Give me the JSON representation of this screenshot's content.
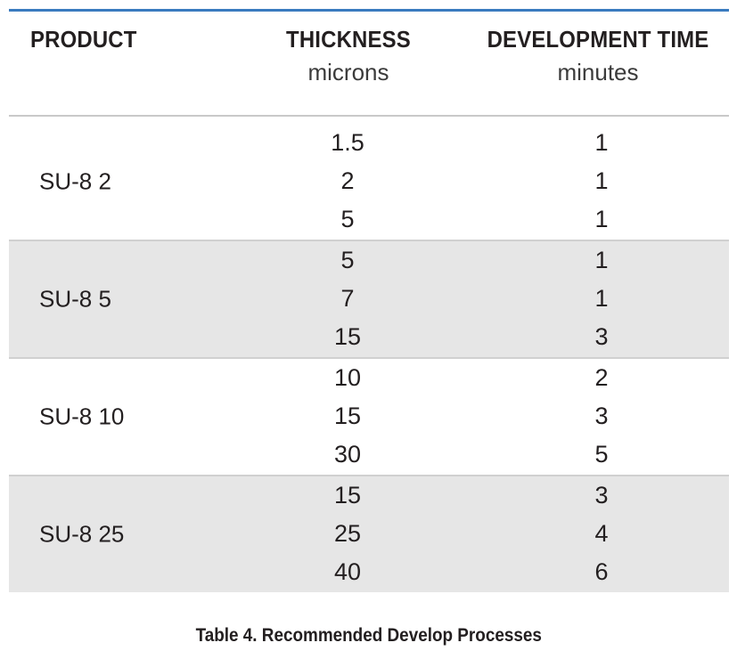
{
  "table": {
    "headers": {
      "product": {
        "title": "PRODUCT",
        "sub": ""
      },
      "thickness": {
        "title": "THICKNESS",
        "sub": "microns"
      },
      "development_time": {
        "title": "DEVELOPMENT TIME",
        "sub": "minutes"
      }
    },
    "colors": {
      "top_rule": "#3a7bbf",
      "shaded_row": "#e6e6e6",
      "text": "#231f20"
    },
    "groups": [
      {
        "product": "SU-8 2",
        "shaded": false,
        "rows": [
          {
            "thickness": "1.5",
            "time": "1"
          },
          {
            "thickness": "2",
            "time": "1"
          },
          {
            "thickness": "5",
            "time": "1"
          }
        ]
      },
      {
        "product": "SU-8 5",
        "shaded": true,
        "rows": [
          {
            "thickness": "5",
            "time": "1"
          },
          {
            "thickness": "7",
            "time": "1"
          },
          {
            "thickness": "15",
            "time": "3"
          }
        ]
      },
      {
        "product": "SU-8 10",
        "shaded": false,
        "rows": [
          {
            "thickness": "10",
            "time": "2"
          },
          {
            "thickness": "15",
            "time": "3"
          },
          {
            "thickness": "30",
            "time": "5"
          }
        ]
      },
      {
        "product": "SU-8 25",
        "shaded": true,
        "rows": [
          {
            "thickness": "15",
            "time": "3"
          },
          {
            "thickness": "25",
            "time": "4"
          },
          {
            "thickness": "40",
            "time": "6"
          }
        ]
      }
    ]
  },
  "caption": "Table 4. Recommended Develop Processes"
}
